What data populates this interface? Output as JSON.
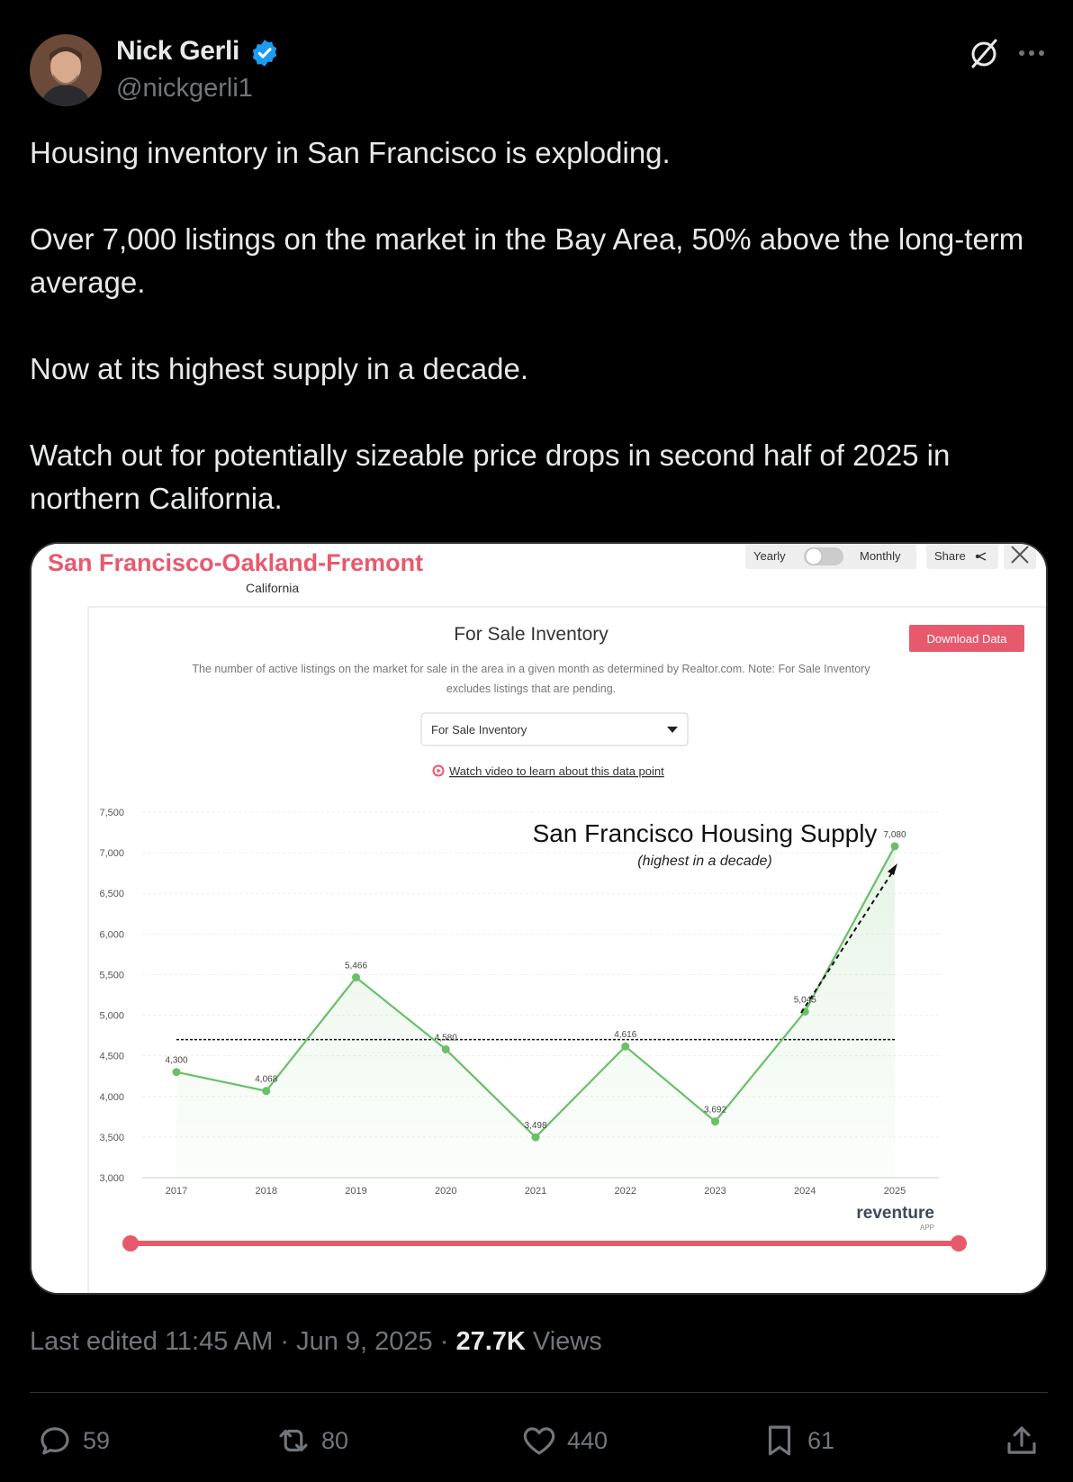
{
  "author": {
    "name": "Nick Gerli",
    "handle": "@nickgerli1",
    "verified_color": "#1d9bf0"
  },
  "tweet": {
    "paragraphs": [
      "Housing inventory in San Francisco is exploding.",
      "Over 7,000 listings on the market in the Bay Area, 50% above the long-term average.",
      "Now at its highest supply in a decade.",
      "Watch out for potentially sizeable price drops in second half of 2025 in northern California."
    ]
  },
  "media": {
    "region_title": "San Francisco-Oakland-Fremont",
    "region_subtitle": "California",
    "toggle_left": "Yearly",
    "toggle_right": "Monthly",
    "share_label": "Share",
    "panel_title": "For Sale Inventory",
    "download_label": "Download Data",
    "description_line1": "The number of active listings on the market for sale in the area in a given month as determined by Realtor.com. Note: For Sale Inventory",
    "description_line2": "excludes listings that are pending.",
    "dropdown_value": "For Sale Inventory",
    "video_link": "Watch video to learn about this data point",
    "brand": "reventure",
    "brand_sub": "APP",
    "accent_color": "#e8596e"
  },
  "chart_data": {
    "type": "line",
    "title": "San Francisco Housing Supply",
    "subtitle": "(highest in a decade)",
    "x": [
      "2017",
      "2018",
      "2019",
      "2020",
      "2021",
      "2022",
      "2023",
      "2024",
      "2025"
    ],
    "series": [
      {
        "values": [
          4300,
          4068,
          5466,
          4580,
          3498,
          4616,
          3692,
          5045,
          7080
        ],
        "labels": [
          "4,300",
          "4,068",
          "5,466",
          "4,580",
          "3,498",
          "4,616",
          "3,692",
          "5,045",
          "7,080"
        ],
        "color": "#6abf69"
      }
    ],
    "reference_line": 4700,
    "ylim": [
      3000,
      7500
    ],
    "yticks": [
      7500,
      7000,
      6500,
      6000,
      5500,
      5000,
      4500,
      4000,
      3500,
      3000
    ],
    "ytick_labels": [
      "7,500",
      "7,000",
      "6,500",
      "6,000",
      "5,500",
      "5,000",
      "4,500",
      "4,000",
      "3,500",
      "3,000"
    ],
    "grid": true,
    "legend": "none"
  },
  "footer": {
    "edited": "Last edited 11:45 AM · Jun 9, 2025 · ",
    "views_count": "27.7K",
    "views_label": " Views"
  },
  "actions": {
    "replies": "59",
    "reposts": "80",
    "likes": "440",
    "bookmarks": "61"
  }
}
